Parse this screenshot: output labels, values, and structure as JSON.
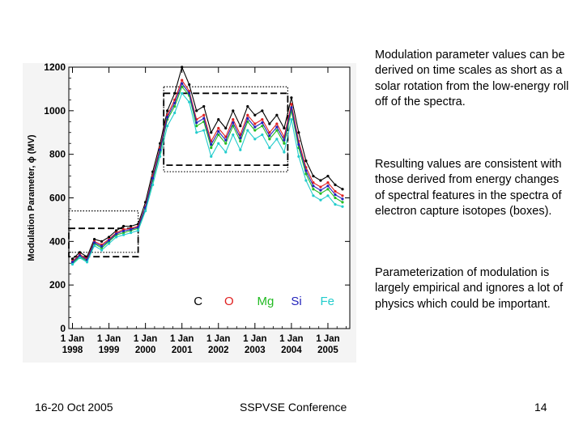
{
  "slide": {
    "paragraphs": [
      "Modulation parameter values can be derived on time scales as short as a solar rotation from the low-energy roll off of the spectra.",
      "Resulting values are consistent with those derived from energy changes of spectral features in the spectra of electron capture isotopes (boxes).",
      "Parameterization of modulation is largely empirical and ignores a lot of physics which could be important."
    ],
    "footer": {
      "date": "16-20 Oct 2005",
      "conference": "SSPVSE Conference",
      "page": "14"
    }
  },
  "chart_data": {
    "type": "line",
    "title": "",
    "xlabel": "",
    "ylabel": "Modulation Parameter, ϕ (MV)",
    "xlim": [
      1997.9,
      2005.6
    ],
    "ylim": [
      0,
      1200
    ],
    "yticks": [
      0,
      200,
      400,
      600,
      800,
      1000,
      1200
    ],
    "xticks": [
      {
        "value": 1998,
        "label1": "1 Jan",
        "label2": "1998"
      },
      {
        "value": 1999,
        "label1": "1 Jan",
        "label2": "1999"
      },
      {
        "value": 2000,
        "label1": "1 Jan",
        "label2": "2000"
      },
      {
        "value": 2001,
        "label1": "1 Jan",
        "label2": "2001"
      },
      {
        "value": 2002,
        "label1": "1 Jan",
        "label2": "2002"
      },
      {
        "value": 2003,
        "label1": "1 Jan",
        "label2": "2003"
      },
      {
        "value": 2004,
        "label1": "1 Jan",
        "label2": "2004"
      },
      {
        "value": 2005,
        "label1": "1 Jan",
        "label2": "2005"
      }
    ],
    "legend_position": "bottom-right inside plot",
    "x": [
      1998.0,
      1998.2,
      1998.4,
      1998.6,
      1998.8,
      1999.0,
      1999.2,
      1999.4,
      1999.6,
      1999.8,
      2000.0,
      2000.2,
      2000.4,
      2000.6,
      2000.8,
      2001.0,
      2001.2,
      2001.4,
      2001.6,
      2001.8,
      2002.0,
      2002.2,
      2002.4,
      2002.6,
      2002.8,
      2003.0,
      2003.2,
      2003.4,
      2003.6,
      2003.8,
      2004.0,
      2004.2,
      2004.4,
      2004.6,
      2004.8,
      2005.0,
      2005.2,
      2005.4
    ],
    "series": [
      {
        "name": "C",
        "color": "#000000",
        "values": [
          320,
          350,
          330,
          410,
          400,
          420,
          450,
          470,
          470,
          480,
          580,
          720,
          850,
          1000,
          1080,
          1200,
          1120,
          1000,
          1020,
          900,
          960,
          920,
          1000,
          930,
          1020,
          980,
          1000,
          940,
          980,
          920,
          1060,
          900,
          770,
          700,
          680,
          700,
          660,
          640
        ]
      },
      {
        "name": "O",
        "color": "#e02020",
        "values": [
          310,
          340,
          320,
          400,
          385,
          410,
          440,
          455,
          460,
          470,
          560,
          700,
          830,
          980,
          1050,
          1140,
          1090,
          960,
          980,
          860,
          920,
          880,
          960,
          890,
          980,
          940,
          960,
          900,
          940,
          880,
          1030,
          860,
          740,
          670,
          650,
          670,
          630,
          610
        ]
      },
      {
        "name": "Mg",
        "color": "#22bb22",
        "values": [
          300,
          330,
          310,
          390,
          370,
          400,
          430,
          440,
          450,
          460,
          550,
          680,
          810,
          960,
          1020,
          1110,
          1070,
          930,
          950,
          830,
          890,
          850,
          930,
          860,
          950,
          910,
          930,
          870,
          910,
          850,
          1000,
          830,
          710,
          640,
          620,
          640,
          600,
          580
        ]
      },
      {
        "name": "Si",
        "color": "#2222bb",
        "values": [
          305,
          335,
          315,
          395,
          378,
          405,
          435,
          448,
          455,
          465,
          555,
          690,
          820,
          970,
          1035,
          1125,
          1080,
          945,
          965,
          845,
          905,
          865,
          945,
          875,
          965,
          925,
          945,
          885,
          925,
          865,
          1015,
          845,
          725,
          655,
          635,
          655,
          615,
          595
        ]
      },
      {
        "name": "Fe",
        "color": "#22cccc",
        "values": [
          295,
          325,
          305,
          380,
          360,
          390,
          420,
          430,
          440,
          450,
          540,
          660,
          790,
          930,
          990,
          1080,
          1040,
          900,
          910,
          790,
          850,
          810,
          890,
          820,
          910,
          870,
          890,
          830,
          870,
          810,
          960,
          790,
          680,
          610,
          590,
          610,
          570,
          560
        ]
      }
    ],
    "boxes": [
      {
        "style": "dotted",
        "x": [
          1997.9,
          1999.8
        ],
        "y": [
          350,
          540
        ]
      },
      {
        "style": "dashed",
        "x": [
          1997.9,
          1999.8
        ],
        "y": [
          330,
          460
        ]
      },
      {
        "style": "dotted",
        "x": [
          2000.5,
          2003.9
        ],
        "y": [
          720,
          1110
        ]
      },
      {
        "style": "dashed",
        "x": [
          2000.5,
          2003.9
        ],
        "y": [
          750,
          1080
        ]
      }
    ]
  }
}
